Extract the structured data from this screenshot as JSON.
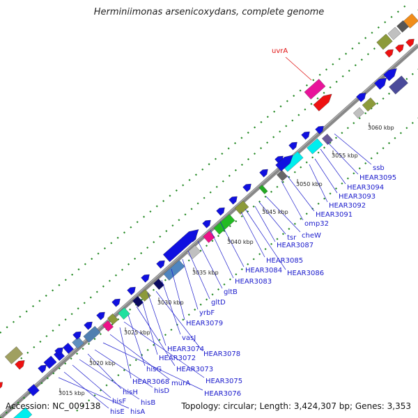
{
  "title": "Herminiimonas arsenicoxydans, complete genome",
  "accession": "Accession: NC_009138",
  "topology": "Topology: circular; Length: 3,424,307 bp; Genes: 3,353",
  "highlight_gene": "uvrA",
  "kbp_labels": [
    "3015 kbp",
    "3020 kbp",
    "3025 kbp",
    "3030 kbp",
    "3035 kbp",
    "3040 kbp",
    "3045 kbp",
    "3050 kbp",
    "3055 kbp",
    "3060 kbp"
  ],
  "gene_labels": [
    "ssb",
    "HEAR3095",
    "HEAR3094",
    "HEAR3093",
    "HEAR3092",
    "HEAR3091",
    "omp32",
    "cheW",
    "tsr",
    "HEAR3087",
    "HEAR3085",
    "HEAR3086",
    "HEAR3084",
    "HEAR3083",
    "gltB",
    "gltD",
    "yrbF",
    "HEAR3079",
    "vasJ",
    "HEAR3078",
    "HEAR3074",
    "HEAR3072",
    "HEAR3073",
    "hisG",
    "HEAR3075",
    "HEAR3068",
    "murA",
    "HEAR3076",
    "hisD",
    "hisH",
    "hisB",
    "hisF",
    "hisE",
    "hisA"
  ],
  "colors": {
    "forward": "#1010e0",
    "reverse": "#1010e0",
    "highlight": "#e8149a",
    "dots": "#228822"
  }
}
